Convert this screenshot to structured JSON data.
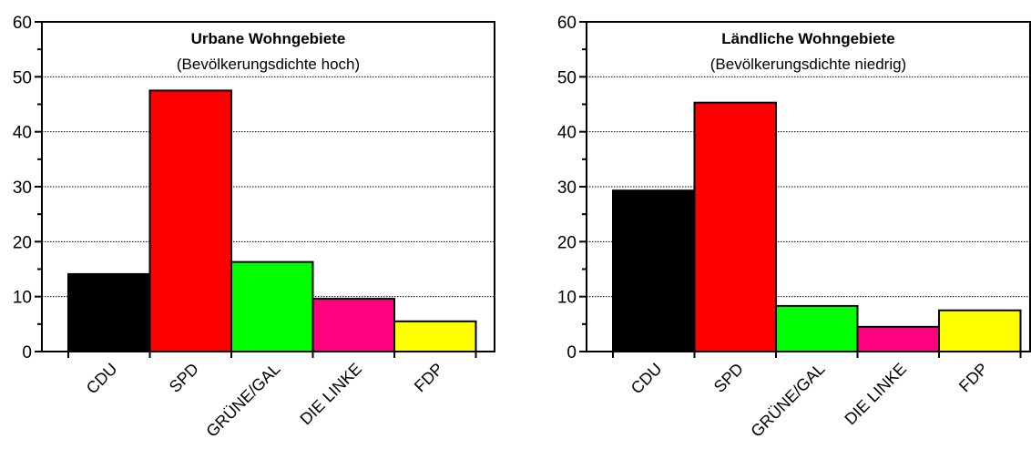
{
  "chart_data": [
    {
      "type": "bar",
      "title": "Urbane Wohngebiete",
      "subtitle": "(Bevölkerungsdichte hoch)",
      "categories": [
        "CDU",
        "SPD",
        "GRÜNE/GAL",
        "DIE LINKE",
        "FDP"
      ],
      "values": [
        14.1,
        47.5,
        16.3,
        9.6,
        5.5
      ],
      "colors": [
        "#000000",
        "#ff0000",
        "#00ff00",
        "#ff0080",
        "#ffff00"
      ],
      "ylim": [
        0,
        60
      ],
      "yticks": [
        "0",
        "10",
        "20",
        "30",
        "40",
        "50",
        "60"
      ],
      "grid": "horizontal dotted",
      "xlabel": "",
      "ylabel": ""
    },
    {
      "type": "bar",
      "title": "Ländliche Wohngebiete",
      "subtitle": "(Bevölkerungsdichte niedrig)",
      "categories": [
        "CDU",
        "SPD",
        "GRÜNE/GAL",
        "DIE LINKE",
        "FDP"
      ],
      "values": [
        29.3,
        45.3,
        8.3,
        4.5,
        7.5
      ],
      "colors": [
        "#000000",
        "#ff0000",
        "#00ff00",
        "#ff0080",
        "#ffff00"
      ],
      "ylim": [
        0,
        60
      ],
      "yticks": [
        "0",
        "10",
        "20",
        "30",
        "40",
        "50",
        "60"
      ],
      "grid": "horizontal dotted",
      "xlabel": "",
      "ylabel": ""
    }
  ]
}
